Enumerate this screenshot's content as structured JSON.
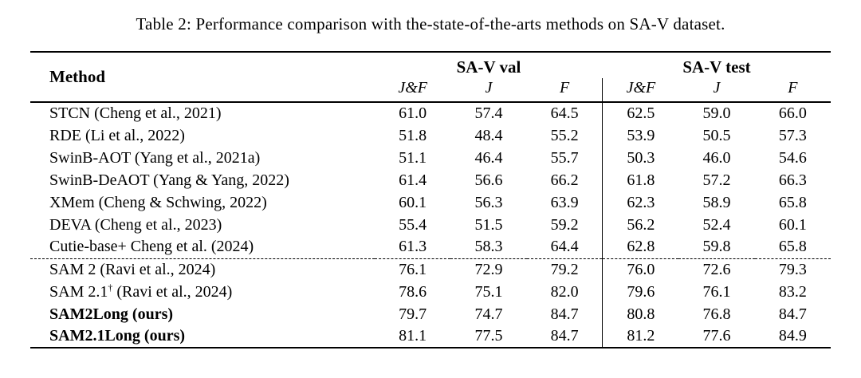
{
  "caption": "Table 2: Performance comparison with the-state-of-the-arts methods on SA-V dataset.",
  "table": {
    "method_header": "Method",
    "groups": [
      {
        "label": "SA-V val"
      },
      {
        "label": "SA-V test"
      }
    ],
    "metric_headers": [
      "J&F",
      "J",
      "F"
    ],
    "rows": [
      {
        "method": "STCN (Cheng et al., 2021)",
        "bold": false,
        "dashed_before": false,
        "values": [
          "61.0",
          "57.4",
          "64.5",
          "62.5",
          "59.0",
          "66.0"
        ]
      },
      {
        "method": "RDE (Li et al., 2022)",
        "bold": false,
        "dashed_before": false,
        "values": [
          "51.8",
          "48.4",
          "55.2",
          "53.9",
          "50.5",
          "57.3"
        ]
      },
      {
        "method": "SwinB-AOT (Yang et al., 2021a)",
        "bold": false,
        "dashed_before": false,
        "values": [
          "51.1",
          "46.4",
          "55.7",
          "50.3",
          "46.0",
          "54.6"
        ]
      },
      {
        "method": "SwinB-DeAOT (Yang & Yang, 2022)",
        "bold": false,
        "dashed_before": false,
        "values": [
          "61.4",
          "56.6",
          "66.2",
          "61.8",
          "57.2",
          "66.3"
        ]
      },
      {
        "method": "XMem (Cheng & Schwing, 2022)",
        "bold": false,
        "dashed_before": false,
        "values": [
          "60.1",
          "56.3",
          "63.9",
          "62.3",
          "58.9",
          "65.8"
        ]
      },
      {
        "method": "DEVA (Cheng et al., 2023)",
        "bold": false,
        "dashed_before": false,
        "values": [
          "55.4",
          "51.5",
          "59.2",
          "56.2",
          "52.4",
          "60.1"
        ]
      },
      {
        "method": "Cutie-base+ Cheng et al. (2024)",
        "bold": false,
        "dashed_before": false,
        "values": [
          "61.3",
          "58.3",
          "64.4",
          "62.8",
          "59.8",
          "65.8"
        ]
      },
      {
        "method": "SAM 2 (Ravi et al., 2024)",
        "bold": false,
        "dashed_before": true,
        "values": [
          "76.1",
          "72.9",
          "79.2",
          "76.0",
          "72.6",
          "79.3"
        ]
      },
      {
        "method": "SAM 2.1† (Ravi et al., 2024)",
        "bold": false,
        "dashed_before": false,
        "values": [
          "78.6",
          "75.1",
          "82.0",
          "79.6",
          "76.1",
          "83.2"
        ]
      },
      {
        "method": "SAM2Long (ours)",
        "bold": true,
        "dashed_before": false,
        "values": [
          "79.7",
          "74.7",
          "84.7",
          "80.8",
          "76.8",
          "84.7"
        ]
      },
      {
        "method": "SAM2.1Long (ours)",
        "bold": true,
        "dashed_before": false,
        "values": [
          "81.1",
          "77.5",
          "84.7",
          "81.2",
          "77.6",
          "84.9"
        ]
      }
    ]
  }
}
